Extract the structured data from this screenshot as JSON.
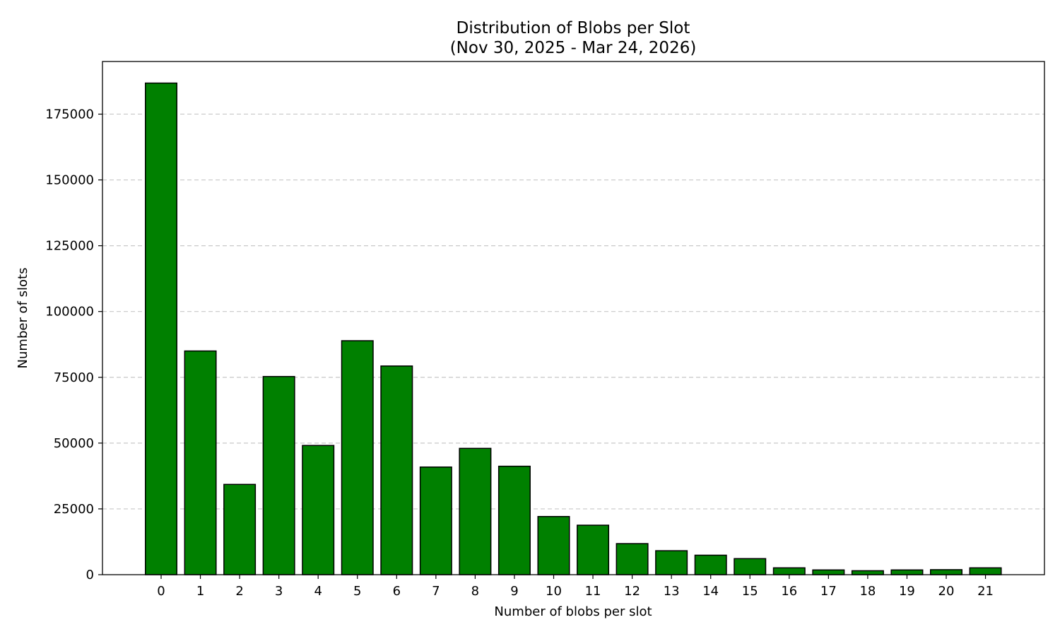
{
  "chart_data": {
    "type": "bar",
    "title": "Distribution of Blobs per Slot",
    "subtitle": "(Nov 30, 2025 - Mar 24, 2026)",
    "xlabel": "Number of blobs per slot",
    "ylabel": "Number of slots",
    "categories": [
      "0",
      "1",
      "2",
      "3",
      "4",
      "5",
      "6",
      "7",
      "8",
      "9",
      "10",
      "11",
      "12",
      "13",
      "14",
      "15",
      "16",
      "17",
      "18",
      "19",
      "20",
      "21"
    ],
    "values": [
      186800,
      85000,
      34300,
      75300,
      49100,
      88900,
      79300,
      40900,
      48000,
      41200,
      22100,
      18800,
      11800,
      9100,
      7400,
      6100,
      2600,
      1800,
      1500,
      1800,
      1900,
      2600
    ],
    "ylim": [
      0,
      195000
    ],
    "yticks": [
      0,
      25000,
      50000,
      75000,
      100000,
      125000,
      150000,
      175000
    ],
    "ytick_labels": [
      "0",
      "25000",
      "50000",
      "75000",
      "100000",
      "125000",
      "150000",
      "175000"
    ],
    "grid": "y-dashed",
    "bar_color": "#008000",
    "bar_edge_color": "#000000",
    "grid_color": "#c8c8c8"
  }
}
